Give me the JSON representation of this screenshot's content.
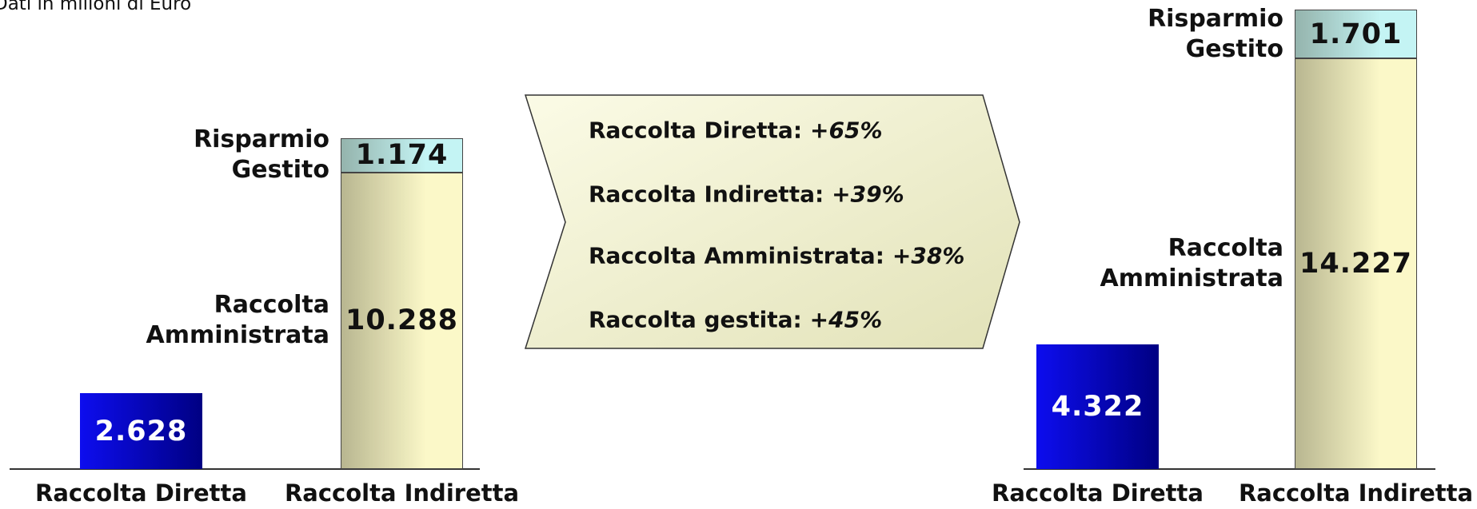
{
  "note": "Dati in milioni di Euro",
  "highlights": [
    {
      "label": "Raccolta Diretta:",
      "change": "+65%"
    },
    {
      "label": "Raccolta Indiretta:",
      "change": "+39%"
    },
    {
      "label": "Raccolta Amministrata:",
      "change": "+38%"
    },
    {
      "label": "Raccolta gestita:",
      "change": "+45%"
    }
  ],
  "chart_data": [
    {
      "type": "bar",
      "stacked": true,
      "categories": [
        "Raccolta Diretta",
        "Raccolta Indiretta"
      ],
      "series": [
        {
          "color": "#0000ee",
          "values": [
            2628,
            null
          ],
          "value_labels": [
            "2.628",
            null
          ]
        },
        {
          "name": "Raccolta Amministrata",
          "color": "#fbf8c8",
          "values": [
            null,
            10288
          ],
          "value_labels": [
            null,
            "10.288"
          ]
        },
        {
          "name": "Risparmio Gestito",
          "color": "#c4f4f4",
          "values": [
            null,
            1174
          ],
          "value_labels": [
            null,
            "1.174"
          ]
        }
      ]
    },
    {
      "type": "bar",
      "stacked": true,
      "categories": [
        "Raccolta Diretta",
        "Raccolta Indiretta"
      ],
      "series": [
        {
          "color": "#0000ee",
          "values": [
            4322,
            null
          ],
          "value_labels": [
            "4.322",
            null
          ]
        },
        {
          "name": "Raccolta Amministrata",
          "color": "#fbf8c8",
          "values": [
            null,
            14227
          ],
          "value_labels": [
            null,
            "14.227"
          ]
        },
        {
          "name": "Risparmio Gestito",
          "color": "#c4f4f4",
          "values": [
            null,
            1701
          ],
          "value_labels": [
            null,
            "1.701"
          ]
        }
      ]
    }
  ]
}
